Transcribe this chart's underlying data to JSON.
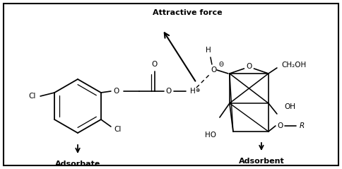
{
  "bg_color": "#ffffff",
  "border_color": "#000000",
  "line_color": "#000000",
  "text_color": "#000000",
  "fig_width": 4.84,
  "fig_height": 2.39,
  "dpi": 100,
  "labels": {
    "attractive_force": "Attractive force",
    "adsorbate": "Adsorbate",
    "adsorbent": "Adsorbent",
    "ch2oh": "CH₂OH",
    "oh": "OH",
    "ho": "HO",
    "r": "R",
    "o": "O",
    "h": "H",
    "theta": "Θ",
    "oplus": "⊕",
    "cl": "Cl"
  }
}
